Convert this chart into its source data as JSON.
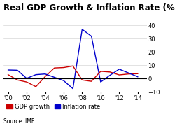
{
  "title": "Real GDP Growth & Inflation Rate (%)",
  "source": "Source: IMF",
  "years": [
    2000,
    2001,
    2002,
    2003,
    2004,
    2005,
    2006,
    2007,
    2008,
    2009,
    2010,
    2011,
    2012,
    2013,
    2014
  ],
  "gdp_growth": [
    3.0,
    -1.0,
    -2.5,
    -6.0,
    1.5,
    8.0,
    8.3,
    9.5,
    -1.0,
    -2.0,
    5.5,
    5.0,
    2.8,
    3.5,
    3.7
  ],
  "inflation_rate": [
    6.5,
    6.3,
    0.2,
    3.0,
    3.5,
    1.0,
    -1.5,
    -7.5,
    37.0,
    31.8,
    -2.5,
    2.5,
    7.1,
    4.3,
    1.4
  ],
  "gdp_color": "#cc0000",
  "inflation_color": "#0000cc",
  "ylim": [
    -10,
    42
  ],
  "yticks": [
    -10,
    0,
    10,
    20,
    30,
    40
  ],
  "xticks": [
    2000,
    2002,
    2004,
    2006,
    2008,
    2010,
    2012,
    2014
  ],
  "xticklabels": [
    "'00",
    "'02",
    "'04",
    "'06",
    "'08",
    "'10",
    "'12",
    "'14"
  ],
  "bg_color": "#ffffff",
  "title_fontsize": 8.5,
  "tick_fontsize": 6,
  "legend_fontsize": 6,
  "source_fontsize": 5.5
}
